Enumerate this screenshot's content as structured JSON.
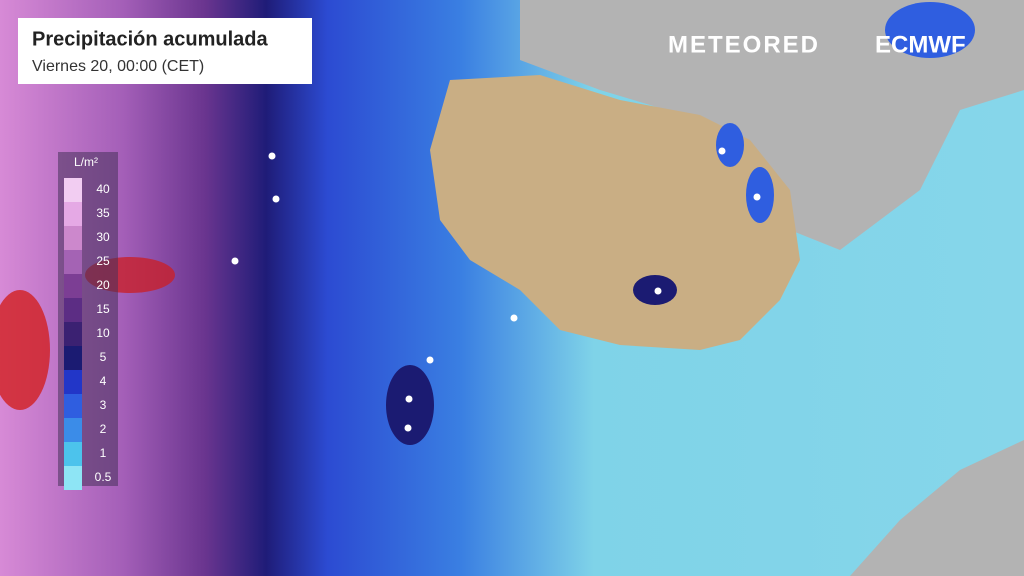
{
  "header": {
    "title": "Precipitación acumulada",
    "subtitle": "Viernes 20, 00:00 (CET)"
  },
  "logos": {
    "left": "METEORED",
    "right": "ECMWF"
  },
  "legend": {
    "unit": "L/m²",
    "stops": [
      {
        "label": 40,
        "color": "#f2cdf2"
      },
      {
        "label": 35,
        "color": "#e5a9e5"
      },
      {
        "label": 30,
        "color": "#cc88cc"
      },
      {
        "label": 25,
        "color": "#a463b4"
      },
      {
        "label": 20,
        "color": "#7c3e94"
      },
      {
        "label": 15,
        "color": "#5c2d84"
      },
      {
        "label": 10,
        "color": "#3b2172"
      },
      {
        "label": 5,
        "color": "#1b1b72"
      },
      {
        "label": 4,
        "color": "#2236c8"
      },
      {
        "label": 3,
        "color": "#2f5ee0"
      },
      {
        "label": 2,
        "color": "#3b8ce8"
      },
      {
        "label": 1,
        "color": "#4cc3ec"
      },
      {
        "label": 0.5,
        "color": "#8ee5f5"
      }
    ]
  }
}
